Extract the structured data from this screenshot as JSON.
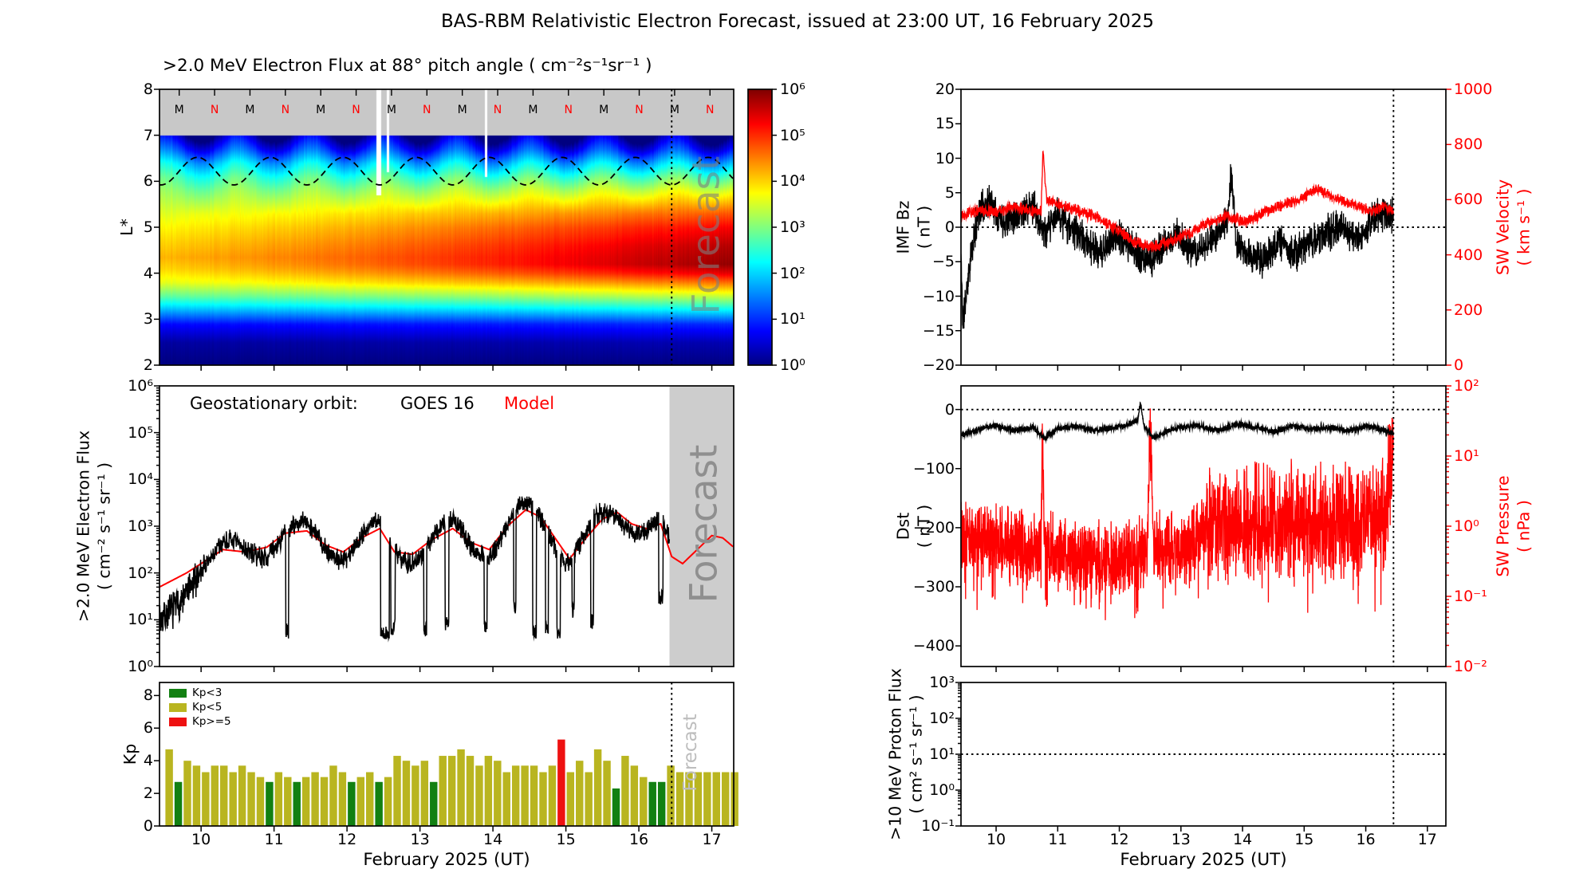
{
  "title": "BAS-RBM Relativistic Electron Forecast, issued at 23:00 UT, 16 February 2025",
  "colors": {
    "model_line": "#ff0000",
    "observed_line": "#000000",
    "forecast_band": "#cdcdcd",
    "heatmap_gray_band": "#c8c8c8",
    "kp_low": "#128012",
    "kp_mid": "#b9b520",
    "kp_high": "#ee1111",
    "secondary_axis": "#ff0000",
    "forecast_watermark": "#8f8f8f"
  },
  "panels": {
    "heatmap": {
      "title": ">2.0 MeV Electron Flux at 88° pitch angle ( cm⁻²s⁻¹sr⁻¹ )",
      "ylabel": "L*",
      "ytick_labels": [
        "8",
        "7",
        "6",
        "5",
        "4",
        "3",
        "2"
      ],
      "ytick_values": [
        8,
        7,
        6,
        5,
        4,
        3,
        2
      ],
      "forecast_label": "Forecast"
    },
    "colorbar": {
      "tick_labels": [
        "10⁶",
        "10⁵",
        "10⁴",
        "10³",
        "10²",
        "10¹",
        "10⁰"
      ],
      "tick_values": [
        6,
        5,
        4,
        3,
        2,
        1,
        0
      ]
    },
    "flux": {
      "ylabel_line1": ">2.0 MeV Electron Flux",
      "ylabel_line2": "( cm⁻² s⁻¹ sr⁻¹ )",
      "ytick_labels": [
        "10⁶",
        "10⁵",
        "10⁴",
        "10³",
        "10²",
        "10¹",
        "10⁰"
      ],
      "ytick_values": [
        6,
        5,
        4,
        3,
        2,
        1,
        0
      ],
      "legend_prefix": "Geostationary orbit:",
      "legend_goes": "GOES 16",
      "legend_model": "Model",
      "forecast_label": "Forecast"
    },
    "kp": {
      "ylabel": "Kp",
      "ytick_labels": [
        "8",
        "6",
        "4",
        "2",
        "0"
      ],
      "ytick_values": [
        8,
        6,
        4,
        2,
        0
      ],
      "legend": [
        {
          "label": "Kp<3",
          "color": "#128012"
        },
        {
          "label": "Kp<5",
          "color": "#b9b520"
        },
        {
          "label": "Kp>=5",
          "color": "#ee1111"
        }
      ],
      "forecast_label": "Forecast"
    },
    "imf": {
      "ylabel_line1": "IMF Bz",
      "ylabel_line2": "( nT )",
      "ytick_labels": [
        "20",
        "15",
        "10",
        "5",
        "0",
        "−5",
        "−10",
        "−15",
        "−20"
      ],
      "ytick_values": [
        20,
        15,
        10,
        5,
        0,
        -5,
        -10,
        -15,
        -20
      ],
      "right_label_line1": "SW Velocity",
      "right_label_line2": "( km s⁻¹ )",
      "right_tick_labels": [
        "1000",
        "800",
        "600",
        "400",
        "200",
        "0"
      ],
      "right_tick_values": [
        1000,
        800,
        600,
        400,
        200,
        0
      ]
    },
    "dst": {
      "ylabel_line1": "Dst",
      "ylabel_line2": "( nT )",
      "ytick_labels": [
        "0",
        "−100",
        "−200",
        "−300",
        "−400"
      ],
      "ytick_values": [
        0,
        -100,
        -200,
        -300,
        -400
      ],
      "right_label_line1": "SW Pressure",
      "right_label_line2": "( nPa )",
      "right_tick_labels": [
        "10²",
        "10¹",
        "10⁰",
        "10⁻¹",
        "10⁻²"
      ],
      "right_tick_values": [
        2,
        1,
        0,
        -1,
        -2
      ]
    },
    "proton": {
      "ylabel_line1": ">10 MeV Proton Flux",
      "ylabel_line2": "( cm² s⁻¹ sr⁻¹ )",
      "ytick_labels": [
        "10³",
        "10²",
        "10¹",
        "10⁰",
        "10⁻¹"
      ],
      "ytick_values": [
        3,
        2,
        1,
        0,
        -1
      ]
    },
    "xaxis": {
      "label": "February 2025 (UT)",
      "tick_labels": [
        "10",
        "11",
        "12",
        "13",
        "14",
        "15",
        "16",
        "17"
      ],
      "tick_values": [
        10,
        11,
        12,
        13,
        14,
        15,
        16,
        17
      ]
    }
  },
  "chart_data": {
    "x_range_days": [
      9.43,
      17.3
    ],
    "x_ticks": [
      10,
      11,
      12,
      13,
      14,
      15,
      16,
      17
    ],
    "now_line_day": 16.45,
    "forecast_start_day": 16.42,
    "heatmap": {
      "type": "heatmap",
      "y_range": [
        2,
        8
      ],
      "log10_flux_range": [
        0,
        6
      ],
      "colormap": "jet",
      "gray_band_y": [
        7,
        8
      ],
      "profile_start": [
        [
          2,
          0
        ],
        [
          2.5,
          0.2
        ],
        [
          2.9,
          0.8
        ],
        [
          3.2,
          1.8
        ],
        [
          3.5,
          2.8
        ],
        [
          3.8,
          3.6
        ],
        [
          4.1,
          4.0
        ],
        [
          4.35,
          4.2
        ],
        [
          4.7,
          4.0
        ],
        [
          5.0,
          3.8
        ],
        [
          5.4,
          3.5
        ],
        [
          5.8,
          3.2
        ],
        [
          6.1,
          2.9
        ],
        [
          6.4,
          2.4
        ],
        [
          6.7,
          1.6
        ],
        [
          7,
          0.9
        ]
      ],
      "profile_end": [
        [
          2,
          0
        ],
        [
          2.5,
          0.3
        ],
        [
          2.9,
          1.0
        ],
        [
          3.2,
          2.2
        ],
        [
          3.5,
          3.4
        ],
        [
          3.8,
          4.6
        ],
        [
          4.0,
          5.4
        ],
        [
          4.2,
          5.9
        ],
        [
          4.6,
          5.7
        ],
        [
          5.0,
          5.3
        ],
        [
          5.4,
          4.6
        ],
        [
          5.8,
          3.8
        ],
        [
          6.1,
          3.1
        ],
        [
          6.4,
          2.3
        ],
        [
          6.7,
          1.4
        ],
        [
          7,
          0.7
        ]
      ],
      "diurnal": {
        "L_min": 5.3,
        "strength": 0.8,
        "period_days": 1
      },
      "dashed_line": {
        "mean_L": 6.22,
        "amplitude": 0.3,
        "period_days": 1,
        "phase": 9.7
      },
      "gap_stripes": [
        [
          12.43,
          0.03,
          5.7
        ],
        [
          12.56,
          0.015,
          6.2
        ],
        [
          13.9,
          0.02,
          6.1
        ]
      ],
      "top_markers": {
        "start_day": 9.7,
        "step_days": 0.485,
        "labels": [
          "M",
          "N",
          "M",
          "N",
          "M",
          "N",
          "M",
          "N",
          "M",
          "N",
          "M",
          "N",
          "M",
          "N",
          "M",
          "N"
        ]
      }
    },
    "goes_flux": {
      "type": "line",
      "y_log10_range": [
        0,
        6
      ],
      "model_anchors": [
        [
          9.43,
          1.7
        ],
        [
          9.8,
          2.0
        ],
        [
          10.05,
          2.25
        ],
        [
          10.3,
          2.5
        ],
        [
          10.6,
          2.45
        ],
        [
          10.9,
          2.55
        ],
        [
          11.15,
          2.85
        ],
        [
          11.45,
          2.9
        ],
        [
          11.7,
          2.6
        ],
        [
          11.95,
          2.45
        ],
        [
          12.2,
          2.75
        ],
        [
          12.45,
          2.95
        ],
        [
          12.65,
          2.45
        ],
        [
          12.9,
          2.4
        ],
        [
          13.15,
          2.7
        ],
        [
          13.45,
          2.95
        ],
        [
          13.7,
          2.65
        ],
        [
          13.95,
          2.5
        ],
        [
          14.2,
          3.0
        ],
        [
          14.45,
          3.35
        ],
        [
          14.65,
          3.2
        ],
        [
          14.85,
          2.75
        ],
        [
          15.05,
          2.3
        ],
        [
          15.25,
          2.7
        ],
        [
          15.5,
          3.15
        ],
        [
          15.7,
          3.3
        ],
        [
          15.9,
          3.05
        ],
        [
          16.1,
          2.95
        ],
        [
          16.3,
          3.05
        ],
        [
          16.45,
          2.35
        ],
        [
          16.6,
          2.2
        ],
        [
          16.8,
          2.5
        ],
        [
          17.0,
          2.8
        ],
        [
          17.15,
          2.75
        ],
        [
          17.3,
          2.55
        ]
      ],
      "early_anchors": [
        [
          9.43,
          1.0
        ],
        [
          9.7,
          1.35
        ],
        [
          9.9,
          1.75
        ],
        [
          10.05,
          2.25
        ]
      ],
      "early_noise_log10": 0.45,
      "data_noise_log10": 0.16,
      "data_end_day": 16.42,
      "dropouts": [
        [
          11.18,
          0.02,
          0.75
        ],
        [
          12.52,
          0.06,
          0.7
        ],
        [
          12.63,
          0.03,
          0.85
        ],
        [
          13.07,
          0.02,
          0.8
        ],
        [
          13.37,
          0.025,
          0.95
        ],
        [
          13.9,
          0.02,
          0.9
        ],
        [
          14.3,
          0.015,
          1.3
        ],
        [
          14.57,
          0.025,
          0.75
        ],
        [
          14.74,
          0.02,
          0.8
        ],
        [
          14.9,
          0.025,
          0.75
        ],
        [
          15.1,
          0.015,
          1.2
        ],
        [
          15.36,
          0.02,
          0.95
        ],
        [
          16.3,
          0.03,
          1.5
        ]
      ]
    },
    "kp": {
      "type": "bar",
      "start_day": 9.5,
      "step_days": 0.125,
      "values": [
        4.7,
        2.7,
        4.0,
        3.7,
        3.3,
        3.7,
        3.7,
        3.3,
        3.7,
        3.3,
        3.0,
        2.7,
        3.3,
        3.0,
        2.7,
        3.0,
        3.3,
        3.0,
        3.7,
        3.3,
        2.7,
        3.0,
        3.3,
        2.7,
        3.0,
        4.3,
        4.0,
        3.7,
        4.0,
        2.7,
        4.3,
        4.3,
        4.7,
        4.3,
        3.7,
        4.3,
        4.0,
        3.3,
        3.7,
        3.7,
        3.7,
        3.3,
        3.7,
        5.3,
        3.3,
        4.0,
        3.3,
        4.7,
        4.0,
        2.3,
        4.3,
        3.7,
        3.0,
        2.7,
        2.7,
        3.7,
        3.3,
        3.3,
        3.3,
        3.3,
        3.3,
        3.3,
        3.3
      ],
      "thresholds": {
        "green_below": 3,
        "red_at_or_above": 5
      },
      "y_max": 8.8
    },
    "imf_bz": {
      "type": "line",
      "y_range": [
        -20,
        20
      ],
      "noise": 3,
      "data_end_day": 16.45,
      "anchors": [
        [
          9.43,
          -4
        ],
        [
          9.46,
          -14
        ],
        [
          9.55,
          -7
        ],
        [
          9.7,
          2
        ],
        [
          9.9,
          4
        ],
        [
          10.1,
          1
        ],
        [
          10.35,
          2
        ],
        [
          10.6,
          3
        ],
        [
          10.8,
          -1
        ],
        [
          11.0,
          2
        ],
        [
          11.2,
          0
        ],
        [
          11.45,
          -2
        ],
        [
          11.7,
          -4
        ],
        [
          11.95,
          -1
        ],
        [
          12.2,
          -3
        ],
        [
          12.45,
          -5
        ],
        [
          12.7,
          -3
        ],
        [
          12.95,
          -1
        ],
        [
          13.2,
          -4
        ],
        [
          13.5,
          -2
        ],
        [
          13.75,
          1
        ],
        [
          13.82,
          8
        ],
        [
          13.9,
          -2
        ],
        [
          14.1,
          -4
        ],
        [
          14.35,
          -5
        ],
        [
          14.6,
          -2
        ],
        [
          14.85,
          -4
        ],
        [
          15.1,
          -2
        ],
        [
          15.35,
          -1
        ],
        [
          15.6,
          0
        ],
        [
          15.85,
          -2
        ],
        [
          16.1,
          1
        ],
        [
          16.3,
          2
        ],
        [
          16.45,
          2
        ]
      ]
    },
    "sw_velocity": {
      "type": "line",
      "y_range": [
        0,
        1000
      ],
      "noise": 24,
      "data_end_day": 16.45,
      "anchors": [
        [
          9.43,
          545
        ],
        [
          9.7,
          560
        ],
        [
          10.0,
          555
        ],
        [
          10.3,
          575
        ],
        [
          10.55,
          560
        ],
        [
          10.73,
          555
        ],
        [
          10.76,
          775
        ],
        [
          10.82,
          600
        ],
        [
          11.05,
          580
        ],
        [
          11.35,
          560
        ],
        [
          11.65,
          535
        ],
        [
          11.95,
          495
        ],
        [
          12.25,
          445
        ],
        [
          12.55,
          430
        ],
        [
          12.85,
          450
        ],
        [
          13.15,
          480
        ],
        [
          13.45,
          515
        ],
        [
          13.75,
          540
        ],
        [
          14.05,
          520
        ],
        [
          14.35,
          555
        ],
        [
          14.65,
          580
        ],
        [
          14.95,
          605
        ],
        [
          15.2,
          640
        ],
        [
          15.5,
          605
        ],
        [
          15.8,
          580
        ],
        [
          16.1,
          560
        ],
        [
          16.3,
          572
        ],
        [
          16.45,
          560
        ]
      ]
    },
    "dst": {
      "type": "line",
      "y_range": [
        40,
        -435
      ],
      "noise": 6,
      "data_end_day": 16.45,
      "anchors": [
        [
          9.43,
          -42
        ],
        [
          9.6,
          -38
        ],
        [
          9.8,
          -30
        ],
        [
          10.0,
          -28
        ],
        [
          10.3,
          -36
        ],
        [
          10.6,
          -30
        ],
        [
          10.78,
          -48
        ],
        [
          11.0,
          -32
        ],
        [
          11.3,
          -28
        ],
        [
          11.6,
          -36
        ],
        [
          11.9,
          -30
        ],
        [
          12.1,
          -28
        ],
        [
          12.3,
          -18
        ],
        [
          12.34,
          10
        ],
        [
          12.4,
          -28
        ],
        [
          12.55,
          -48
        ],
        [
          12.8,
          -36
        ],
        [
          13.0,
          -30
        ],
        [
          13.3,
          -28
        ],
        [
          13.6,
          -36
        ],
        [
          13.9,
          -24
        ],
        [
          14.2,
          -30
        ],
        [
          14.5,
          -38
        ],
        [
          14.8,
          -28
        ],
        [
          15.1,
          -33
        ],
        [
          15.4,
          -30
        ],
        [
          15.7,
          -36
        ],
        [
          16.0,
          -28
        ],
        [
          16.2,
          -32
        ],
        [
          16.45,
          -40
        ]
      ]
    },
    "sw_pressure": {
      "type": "line",
      "y_log10_range": [
        -2,
        2
      ],
      "log10_noise_early": 0.6,
      "log10_noise_late": 0.95,
      "noise_change_day": 13.4,
      "data_end_day": 16.45,
      "log10_anchors": [
        [
          9.43,
          -0.1
        ],
        [
          10.0,
          -0.2
        ],
        [
          10.5,
          -0.35
        ],
        [
          10.73,
          -0.3
        ],
        [
          10.75,
          1.5
        ],
        [
          10.78,
          -0.2
        ],
        [
          11.0,
          -0.35
        ],
        [
          11.5,
          -0.45
        ],
        [
          12.0,
          -0.5
        ],
        [
          12.45,
          -0.4
        ],
        [
          12.5,
          1.45
        ],
        [
          12.56,
          -0.3
        ],
        [
          13.0,
          -0.35
        ],
        [
          13.5,
          0.0
        ],
        [
          14.0,
          0.1
        ],
        [
          14.5,
          0.1
        ],
        [
          15.0,
          0.0
        ],
        [
          15.5,
          0.1
        ],
        [
          16.0,
          0.05
        ],
        [
          16.3,
          0.15
        ],
        [
          16.42,
          0.85
        ],
        [
          16.45,
          0.9
        ]
      ]
    },
    "proton_flux": {
      "type": "line",
      "y_log10_range": [
        -1,
        3
      ],
      "visible_data": "none",
      "reference_line_log10": 1
    }
  }
}
